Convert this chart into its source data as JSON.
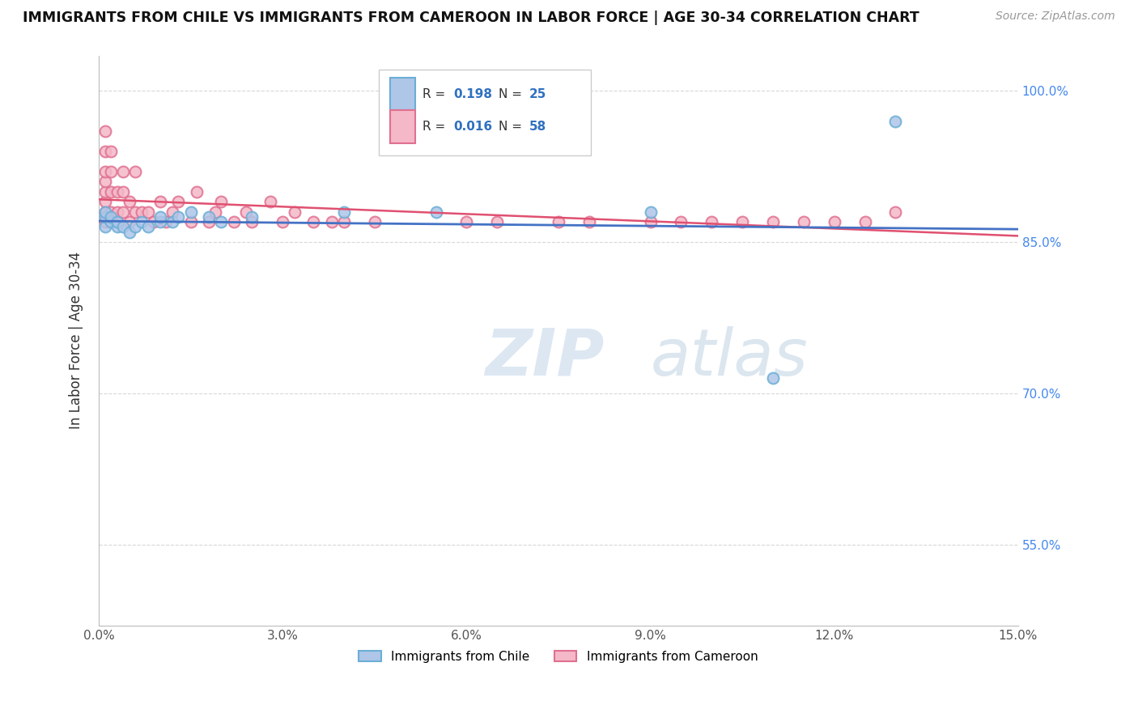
{
  "title": "IMMIGRANTS FROM CHILE VS IMMIGRANTS FROM CAMEROON IN LABOR FORCE | AGE 30-34 CORRELATION CHART",
  "source": "Source: ZipAtlas.com",
  "ylabel": "In Labor Force | Age 30-34",
  "xlim": [
    0.0,
    0.15
  ],
  "ylim": [
    0.47,
    1.035
  ],
  "xticks": [
    0.0,
    0.03,
    0.06,
    0.09,
    0.12,
    0.15
  ],
  "xtick_labels": [
    "0.0%",
    "3.0%",
    "6.0%",
    "9.0%",
    "12.0%",
    "15.0%"
  ],
  "ytick_positions": [
    0.55,
    0.7,
    0.85,
    1.0
  ],
  "ytick_labels": [
    "55.0%",
    "70.0%",
    "85.0%",
    "100.0%"
  ],
  "chile_color": "#aec6e8",
  "chile_edge_color": "#6baed6",
  "cameroon_color": "#f4b8c8",
  "cameroon_edge_color": "#e07090",
  "chile_line_color": "#4472c4",
  "cameroon_line_color": "#e05070",
  "legend_color": "#3070c0",
  "chile_R": "0.198",
  "chile_N": "25",
  "cameroon_R": "0.016",
  "cameroon_N": "58",
  "chile_scatter_x": [
    0.001,
    0.001,
    0.001,
    0.002,
    0.002,
    0.003,
    0.003,
    0.004,
    0.005,
    0.006,
    0.007,
    0.008,
    0.01,
    0.01,
    0.012,
    0.013,
    0.015,
    0.018,
    0.02,
    0.025,
    0.04,
    0.055,
    0.09,
    0.11,
    0.13
  ],
  "chile_scatter_y": [
    0.865,
    0.875,
    0.88,
    0.87,
    0.875,
    0.865,
    0.87,
    0.865,
    0.86,
    0.865,
    0.87,
    0.865,
    0.87,
    0.875,
    0.87,
    0.875,
    0.88,
    0.875,
    0.87,
    0.875,
    0.88,
    0.88,
    0.88,
    0.715,
    0.97
  ],
  "cameroon_scatter_x": [
    0.001,
    0.001,
    0.001,
    0.001,
    0.001,
    0.001,
    0.001,
    0.001,
    0.002,
    0.002,
    0.002,
    0.002,
    0.002,
    0.003,
    0.003,
    0.003,
    0.004,
    0.004,
    0.004,
    0.005,
    0.005,
    0.006,
    0.006,
    0.007,
    0.008,
    0.009,
    0.01,
    0.011,
    0.012,
    0.013,
    0.015,
    0.016,
    0.018,
    0.019,
    0.02,
    0.022,
    0.024,
    0.025,
    0.028,
    0.03,
    0.032,
    0.035,
    0.038,
    0.04,
    0.045,
    0.06,
    0.065,
    0.075,
    0.08,
    0.09,
    0.095,
    0.1,
    0.105,
    0.11,
    0.115,
    0.12,
    0.125,
    0.13
  ],
  "cameroon_scatter_y": [
    0.87,
    0.88,
    0.89,
    0.9,
    0.91,
    0.92,
    0.94,
    0.96,
    0.87,
    0.88,
    0.9,
    0.92,
    0.94,
    0.87,
    0.88,
    0.9,
    0.88,
    0.9,
    0.92,
    0.87,
    0.89,
    0.88,
    0.92,
    0.88,
    0.88,
    0.87,
    0.89,
    0.87,
    0.88,
    0.89,
    0.87,
    0.9,
    0.87,
    0.88,
    0.89,
    0.87,
    0.88,
    0.87,
    0.89,
    0.87,
    0.88,
    0.87,
    0.87,
    0.87,
    0.87,
    0.87,
    0.87,
    0.87,
    0.87,
    0.87,
    0.87,
    0.87,
    0.87,
    0.87,
    0.87,
    0.87,
    0.87,
    0.88
  ],
  "marker_size": 100,
  "marker_linewidth": 1.5,
  "grid_color": "#d8d8d8",
  "background_color": "#ffffff"
}
